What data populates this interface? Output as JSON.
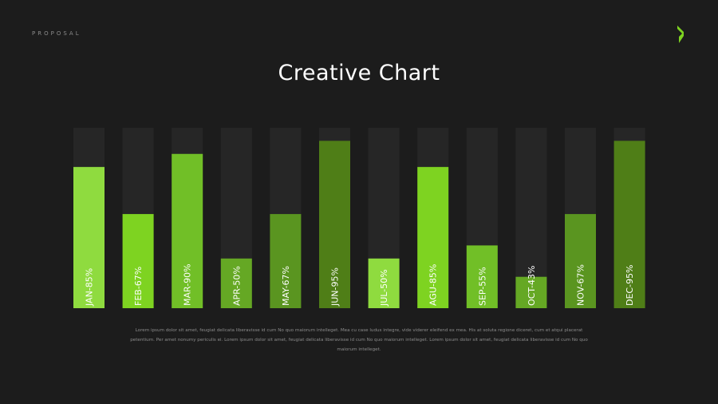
{
  "header": {
    "label": "PROPOSAL",
    "logo_icon": "chevron-right-logo-icon",
    "accent_color": "#7ed321"
  },
  "title": "Creative Chart",
  "chart_data": {
    "type": "bar",
    "title": "Creative Chart",
    "categories": [
      "JAN-85%",
      "FEB-67%",
      "MAR-90%",
      "APR-50%",
      "MAY-67%",
      "JUN-95%",
      "JUL-50%",
      "AGU-85%",
      "SEP-55%",
      "OCT-43%",
      "NOV-67%",
      "DEC-95%"
    ],
    "values": [
      85,
      67,
      90,
      50,
      67,
      95,
      50,
      85,
      55,
      43,
      67,
      95
    ],
    "ylim": [
      0,
      100
    ],
    "colors": [
      "#8fdb3f",
      "#7ed321",
      "#71bf27",
      "#65a824",
      "#5a9520",
      "#4f7e17",
      "#8fdb3f",
      "#7ed321",
      "#71bf27",
      "#65a824",
      "#5a9520",
      "#4f7e17"
    ],
    "track_color": "#262626",
    "grid": false,
    "legend": "none"
  },
  "body_text": "Lorem ipsum dolor sit amet, feugiat delicata liberavisse id cum No quo maiorum intelleget. Mea cu case ludus integre, vide viderer eleifend ex mea. His at soluta regione diceret, cum et atqui placerat petentium. Per amet nonumy periculis ei. Lorem ipsum dolor sit amet, feugiat delicata liberavisse id cum No quo maiorum intelleget. Lorem ipsum dolor sit amet, feugiat delicata liberavisse id cum No quo maiorum intelleget."
}
